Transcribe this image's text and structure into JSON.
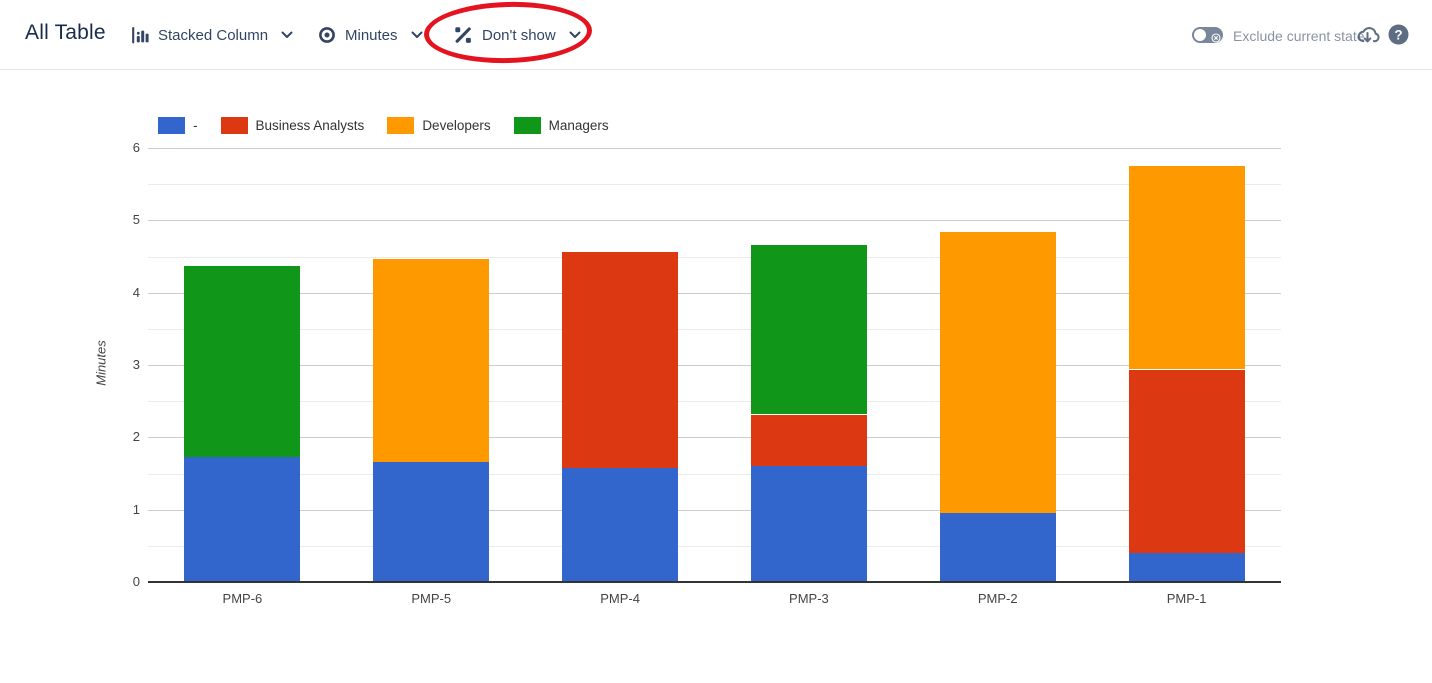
{
  "header": {
    "title": "All Table",
    "chart_type_label": "Stacked Column",
    "unit_label": "Minutes",
    "percentage_label": "Don't show",
    "exclude_label": "Exclude current state",
    "exclude_toggle_state": "off"
  },
  "annotation": {
    "shape": "hand-drawn red ellipse circling the Don't show dropdown",
    "color": "#e51320"
  },
  "colors": {
    "title_text": "#172B4D",
    "control_text": "#344563",
    "muted_text": "#8993A4",
    "icon_slate": "#5E6C84",
    "gridline_major": "#cccccc",
    "gridline_minor": "#ebebeb",
    "axis_baseline": "#333333",
    "tick_text": "#444444"
  },
  "chart_data": {
    "type": "bar",
    "stacked": true,
    "title": "",
    "xlabel": "",
    "ylabel": "Minutes",
    "ylim": [
      0,
      6
    ],
    "ytick_step": 1,
    "minor_gridline_step": 0.5,
    "grid": true,
    "legend_position": "top",
    "categories": [
      "PMP-6",
      "PMP-5",
      "PMP-4",
      "PMP-3",
      "PMP-2",
      "PMP-1"
    ],
    "series": [
      {
        "name": "-",
        "color": "#3366CC",
        "values": [
          1.73,
          1.66,
          1.57,
          1.6,
          0.95,
          0.4
        ]
      },
      {
        "name": "Business Analysts",
        "color": "#DC3912",
        "values": [
          0,
          0,
          3.0,
          0.72,
          0,
          2.55
        ]
      },
      {
        "name": "Developers",
        "color": "#FF9900",
        "values": [
          0,
          2.82,
          0,
          0,
          3.9,
          2.82
        ]
      },
      {
        "name": "Managers",
        "color": "#109618",
        "values": [
          2.65,
          0,
          0,
          2.35,
          0,
          0
        ]
      }
    ],
    "stack_totals": [
      4.38,
      4.48,
      4.57,
      4.67,
      4.85,
      5.77
    ]
  }
}
